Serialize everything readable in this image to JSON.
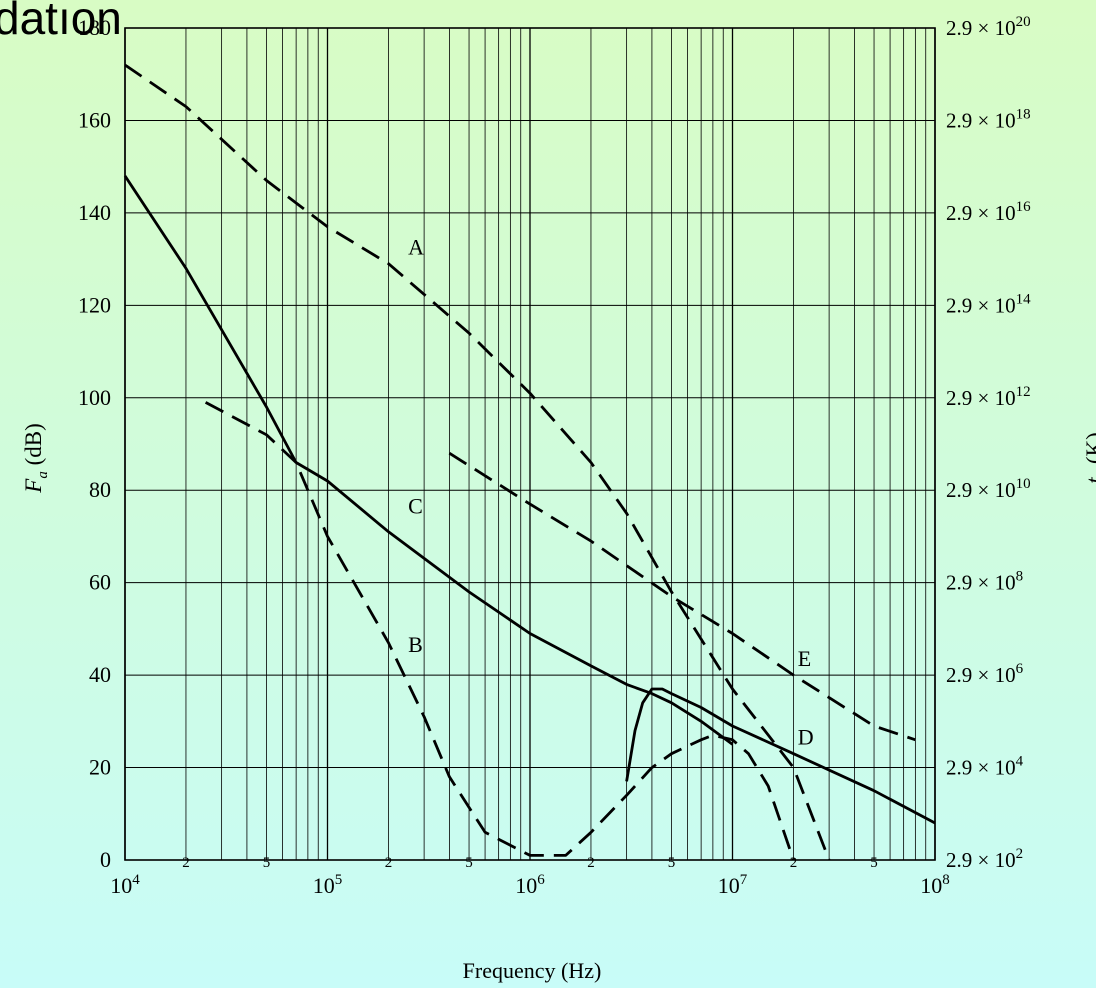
{
  "slide": {
    "title_fragment": "datıon"
  },
  "chart_data": {
    "type": "line",
    "title": "",
    "xlabel": "Frequency (Hz)",
    "ylabel_main": "F",
    "ylabel_sub": "a",
    "ylabel_unit": " (dB)",
    "y2label_main": "t",
    "y2label_sub": "a",
    "y2label_unit": " (K)",
    "xscale": "log",
    "xlim": [
      10000,
      100000000
    ],
    "ylim": [
      0,
      180
    ],
    "grid": true,
    "x_major_ticks": [
      {
        "value": 10000,
        "base": "10",
        "exp": "4"
      },
      {
        "value": 100000,
        "base": "10",
        "exp": "5"
      },
      {
        "value": 1000000,
        "base": "10",
        "exp": "6"
      },
      {
        "value": 10000000,
        "base": "10",
        "exp": "7"
      },
      {
        "value": 100000000,
        "base": "10",
        "exp": "8"
      }
    ],
    "x_minor_tick_labels": [
      {
        "value": 20000,
        "label": "2"
      },
      {
        "value": 50000,
        "label": "5"
      },
      {
        "value": 200000,
        "label": "2"
      },
      {
        "value": 500000,
        "label": "5"
      },
      {
        "value": 2000000,
        "label": "2"
      },
      {
        "value": 5000000,
        "label": "5"
      },
      {
        "value": 20000000,
        "label": "2"
      },
      {
        "value": 50000000,
        "label": "5"
      }
    ],
    "y_ticks": [
      {
        "value": 0,
        "label": "0"
      },
      {
        "value": 20,
        "label": "20"
      },
      {
        "value": 40,
        "label": "40"
      },
      {
        "value": 60,
        "label": "60"
      },
      {
        "value": 80,
        "label": "80"
      },
      {
        "value": 100,
        "label": "100"
      },
      {
        "value": 120,
        "label": "120"
      },
      {
        "value": 140,
        "label": "140"
      },
      {
        "value": 160,
        "label": "160"
      },
      {
        "value": 180,
        "label": "180"
      }
    ],
    "y2_ticks": [
      {
        "value": 0,
        "mant": "2.9 × 10",
        "exp": "2"
      },
      {
        "value": 20,
        "mant": "2.9 × 10",
        "exp": "4"
      },
      {
        "value": 40,
        "mant": "2.9 × 10",
        "exp": "6"
      },
      {
        "value": 60,
        "mant": "2.9 × 10",
        "exp": "8"
      },
      {
        "value": 80,
        "mant": "2.9 × 10",
        "exp": "10"
      },
      {
        "value": 100,
        "mant": "2.9 × 10",
        "exp": "12"
      },
      {
        "value": 120,
        "mant": "2.9 × 10",
        "exp": "14"
      },
      {
        "value": 140,
        "mant": "2.9 × 10",
        "exp": "16"
      },
      {
        "value": 160,
        "mant": "2.9 × 10",
        "exp": "18"
      },
      {
        "value": 180,
        "mant": "2.9 × 10",
        "exp": "20"
      }
    ],
    "series": [
      {
        "id": "curve-a",
        "label": "A",
        "label_at": [
          250000,
          131
        ],
        "style": "dashed",
        "points": [
          [
            10000,
            172
          ],
          [
            20000,
            163
          ],
          [
            50000,
            147
          ],
          [
            100000,
            137
          ],
          [
            200000,
            129
          ],
          [
            500000,
            114
          ],
          [
            1000000,
            101
          ],
          [
            2000000,
            86
          ],
          [
            3000000,
            75
          ],
          [
            5000000,
            58
          ],
          [
            10000000,
            37
          ],
          [
            20000000,
            20
          ],
          [
            30000000,
            0
          ]
        ]
      },
      {
        "id": "curve-b",
        "label": "B",
        "label_at": [
          250000,
          45
        ],
        "style": "dashed",
        "points": [
          [
            25000,
            99
          ],
          [
            50000,
            92
          ],
          [
            70000,
            86
          ],
          [
            100000,
            70
          ],
          [
            200000,
            47
          ],
          [
            300000,
            31
          ],
          [
            400000,
            18
          ],
          [
            600000,
            6
          ],
          [
            1000000,
            1
          ],
          [
            1500000,
            1
          ],
          [
            2000000,
            6
          ],
          [
            3000000,
            14
          ],
          [
            4000000,
            20
          ],
          [
            5000000,
            23
          ],
          [
            7000000,
            26
          ],
          [
            8000000,
            27
          ],
          [
            10000000,
            26
          ],
          [
            12000000,
            23
          ],
          [
            15000000,
            16
          ],
          [
            20000000,
            0
          ]
        ]
      },
      {
        "id": "curve-c",
        "label": "C",
        "label_at": [
          250000,
          75
        ],
        "style": "solid",
        "points": [
          [
            10000,
            148
          ],
          [
            20000,
            128
          ],
          [
            50000,
            98
          ],
          [
            70000,
            86
          ],
          [
            100000,
            82
          ],
          [
            200000,
            71
          ],
          [
            500000,
            58
          ],
          [
            1000000,
            49
          ],
          [
            2000000,
            42
          ],
          [
            3000000,
            38
          ],
          [
            4000000,
            36
          ],
          [
            5000000,
            34
          ],
          [
            7000000,
            30
          ],
          [
            10000000,
            25
          ]
        ]
      },
      {
        "id": "curve-d",
        "label": "D",
        "label_at": [
          21000000,
          25
        ],
        "style": "solid",
        "points": [
          [
            3000000,
            17
          ],
          [
            3300000,
            28
          ],
          [
            3600000,
            34
          ],
          [
            4000000,
            37
          ],
          [
            4500000,
            37
          ],
          [
            5000000,
            36
          ],
          [
            7000000,
            33
          ],
          [
            10000000,
            29
          ],
          [
            20000000,
            23
          ],
          [
            50000000,
            15
          ],
          [
            100000000,
            8
          ]
        ]
      },
      {
        "id": "curve-e",
        "label": "E",
        "label_at": [
          21000000,
          42
        ],
        "style": "dashed",
        "points": [
          [
            400000,
            88
          ],
          [
            1000000,
            77
          ],
          [
            2000000,
            69
          ],
          [
            5000000,
            57
          ],
          [
            10000000,
            49
          ],
          [
            20000000,
            40
          ],
          [
            50000000,
            29
          ],
          [
            80000000,
            26
          ]
        ]
      }
    ]
  }
}
